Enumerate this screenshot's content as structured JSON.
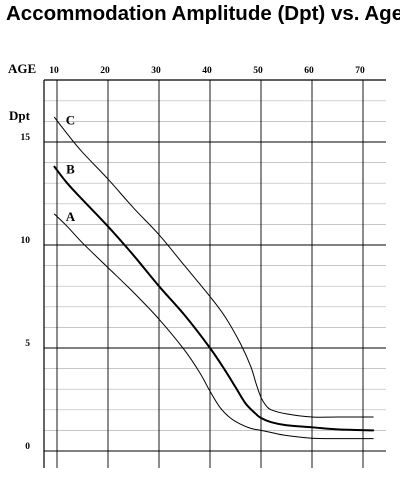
{
  "chart_data": {
    "type": "line",
    "title": "Accommodation Amplitude (Dpt) vs. Age",
    "xlabel": "AGE",
    "ylabel": "Dpt",
    "xlim": [
      10,
      72
    ],
    "ylim": [
      0,
      17
    ],
    "x_ticks": [
      "10",
      "20",
      "30",
      "40",
      "50",
      "60",
      "70"
    ],
    "y_ticks": [
      "0",
      "5",
      "10",
      "15"
    ],
    "grid": true,
    "series": [
      {
        "name": "C",
        "x": [
          9.5,
          12,
          15,
          20,
          25,
          30,
          35,
          40,
          43,
          46,
          48,
          49,
          50,
          51,
          52,
          55,
          60,
          65,
          72
        ],
        "values": [
          16.2,
          15.4,
          14.5,
          13.2,
          11.8,
          10.5,
          9.0,
          7.5,
          6.5,
          5.2,
          4.1,
          3.3,
          2.6,
          2.2,
          2.0,
          1.8,
          1.65,
          1.65,
          1.65
        ],
        "stroke_width": 1
      },
      {
        "name": "B",
        "x": [
          9.5,
          12,
          15,
          20,
          25,
          30,
          35,
          40,
          43,
          45,
          47,
          49,
          50,
          52,
          55,
          60,
          65,
          72
        ],
        "values": [
          13.8,
          13.0,
          12.2,
          10.9,
          9.5,
          8.0,
          6.6,
          5.0,
          3.9,
          3.1,
          2.3,
          1.8,
          1.6,
          1.4,
          1.25,
          1.15,
          1.05,
          1.0
        ],
        "stroke_width": 2
      },
      {
        "name": "A",
        "x": [
          9.5,
          12,
          15,
          20,
          25,
          30,
          35,
          38,
          40,
          42,
          44,
          46,
          48,
          50,
          52,
          55,
          60,
          65,
          72
        ],
        "values": [
          11.5,
          10.9,
          10.1,
          8.9,
          7.7,
          6.4,
          4.9,
          3.8,
          2.9,
          2.1,
          1.6,
          1.3,
          1.1,
          1.0,
          0.9,
          0.75,
          0.62,
          0.6,
          0.6
        ],
        "stroke_width": 1
      }
    ]
  }
}
